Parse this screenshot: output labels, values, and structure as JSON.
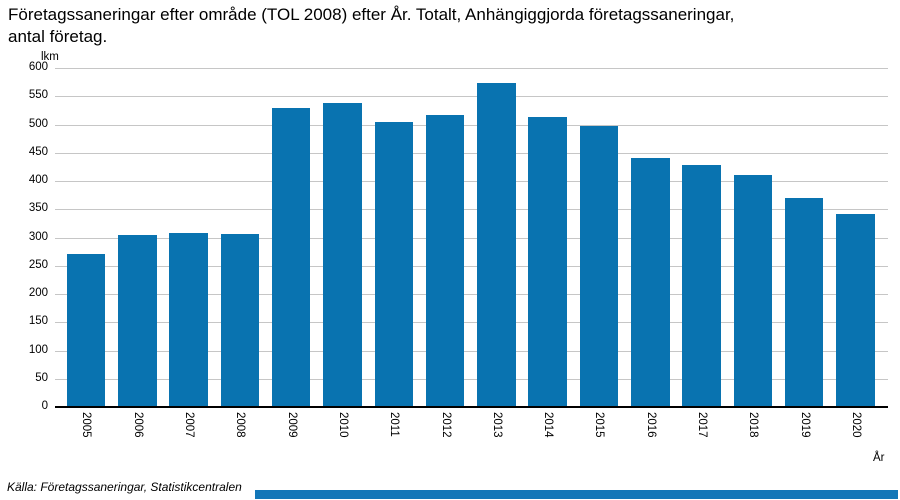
{
  "header": {
    "title_line1": "Företagssaneringar efter område (TOL 2008) efter År. Totalt, Anhängiggjorda företagssaneringar,",
    "title_line2": "antal företag."
  },
  "chart_data": {
    "type": "bar",
    "title": "Företagssaneringar efter område (TOL 2008) efter År. Totalt, Anhängiggjorda företagssaneringar, antal företag.",
    "ylabel": "lkm",
    "xlabel": "År",
    "categories": [
      "2005",
      "2006",
      "2007",
      "2008",
      "2009",
      "2010",
      "2011",
      "2012",
      "2013",
      "2014",
      "2015",
      "2016",
      "2017",
      "2018",
      "2019",
      "2020"
    ],
    "values": [
      269,
      303,
      306,
      305,
      528,
      537,
      503,
      515,
      571,
      512,
      495,
      439,
      427,
      409,
      368,
      339
    ],
    "ylim": [
      0,
      600
    ],
    "ytick_step": 50,
    "yticks": [
      600,
      550,
      500,
      450,
      400,
      350,
      300,
      250,
      200,
      150,
      100,
      50,
      0
    ],
    "grid": true,
    "legend_position": "none",
    "bar_color": "#0973b0",
    "gridline_color": "#c6c6c6",
    "axis_color": "#000000"
  },
  "footer": {
    "source": "Källa: Företagssaneringar, Statistikcentralen",
    "scrollbar_color": "#1377b8"
  }
}
